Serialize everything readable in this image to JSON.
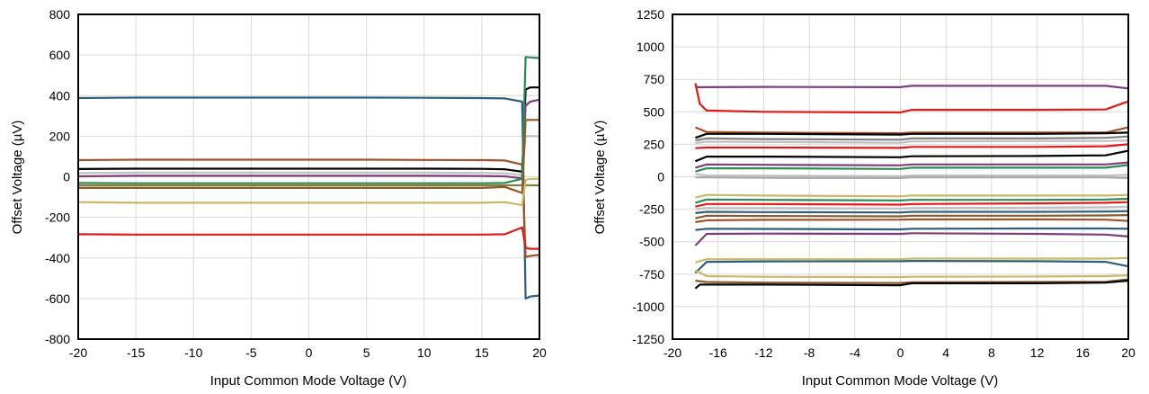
{
  "chart_data": [
    {
      "type": "line",
      "xlabel": "Input Common Mode Voltage (V)",
      "ylabel": "Offset Voltage (µV)",
      "xlim": [
        -20,
        20
      ],
      "ylim": [
        -800,
        800
      ],
      "xticks": [
        -20,
        -15,
        -10,
        -5,
        0,
        5,
        10,
        15,
        20
      ],
      "xtick_labels": [
        "-20",
        "-15",
        "-10",
        "-5",
        "0",
        "5",
        "10",
        "15",
        "20"
      ],
      "yticks": [
        -800,
        -600,
        -400,
        -200,
        0,
        200,
        400,
        600,
        800
      ],
      "ytick_labels": [
        "-800",
        "-600",
        "-400",
        "-200",
        "0",
        "200",
        "400",
        "600",
        "800"
      ],
      "grid": true,
      "series": [
        {
          "color": "#2f5f7a",
          "x": [
            -20,
            -15,
            -10,
            -5,
            0,
            5,
            10,
            15,
            17,
            18.5,
            18.8,
            19.2,
            20
          ],
          "y": [
            388,
            390,
            390,
            390,
            390,
            390,
            389,
            388,
            386,
            370,
            -600,
            -590,
            -585
          ]
        },
        {
          "color": "#a0522d",
          "x": [
            -20,
            -15,
            -10,
            -5,
            0,
            5,
            10,
            15,
            17,
            18.5,
            18.8,
            19.2,
            20
          ],
          "y": [
            82,
            84,
            84,
            84,
            84,
            84,
            83,
            82,
            80,
            60,
            -395,
            -390,
            -385
          ]
        },
        {
          "color": "#000000",
          "x": [
            -20,
            -15,
            -10,
            -5,
            0,
            5,
            10,
            15,
            17,
            18.5,
            18.8,
            19.2,
            20
          ],
          "y": [
            38,
            40,
            40,
            40,
            40,
            40,
            40,
            39,
            37,
            25,
            430,
            440,
            440
          ]
        },
        {
          "color": "#c0c0c0",
          "x": [
            -20,
            -15,
            -10,
            -5,
            0,
            5,
            10,
            15,
            17,
            18.5,
            18.8,
            19.2,
            20
          ],
          "y": [
            18,
            20,
            20,
            20,
            20,
            20,
            20,
            19,
            17,
            8,
            200,
            200,
            200
          ]
        },
        {
          "color": "#7b3f7b",
          "x": [
            -20,
            -15,
            -10,
            -5,
            0,
            5,
            10,
            15,
            17,
            18.5,
            18.8,
            19.2,
            20
          ],
          "y": [
            2,
            5,
            5,
            5,
            5,
            5,
            5,
            4,
            2,
            -8,
            350,
            370,
            380
          ]
        },
        {
          "color": "#2e8b57",
          "x": [
            -20,
            -15,
            -10,
            -5,
            0,
            5,
            10,
            15,
            17,
            18.5,
            18.8,
            19.2,
            20
          ],
          "y": [
            -30,
            -32,
            -32,
            -32,
            -32,
            -32,
            -32,
            -32,
            -30,
            -10,
            590,
            588,
            585
          ]
        },
        {
          "color": "#808040",
          "x": [
            -20,
            -15,
            -10,
            -5,
            0,
            5,
            10,
            15,
            17,
            18.5,
            18.8,
            19.2,
            20
          ],
          "y": [
            -42,
            -42,
            -42,
            -42,
            -42,
            -42,
            -42,
            -42,
            -42,
            -42,
            -42,
            -42,
            -42
          ]
        },
        {
          "color": "#8b5a2b",
          "x": [
            -20,
            -15,
            -10,
            -5,
            0,
            5,
            10,
            15,
            17,
            18.5,
            18.8,
            19.2,
            20
          ],
          "y": [
            -55,
            -55,
            -55,
            -55,
            -55,
            -55,
            -55,
            -55,
            -50,
            -80,
            280,
            280,
            280
          ]
        },
        {
          "color": "#c8b86a",
          "x": [
            -20,
            -15,
            -10,
            -5,
            0,
            5,
            10,
            15,
            17,
            18.5,
            18.8,
            19.2,
            20
          ],
          "y": [
            -125,
            -128,
            -128,
            -128,
            -128,
            -128,
            -128,
            -128,
            -125,
            -140,
            -15,
            -10,
            -10
          ]
        },
        {
          "color": "#e31a1c",
          "x": [
            -20,
            -15,
            -10,
            -5,
            0,
            5,
            10,
            15,
            17,
            18.5,
            18.8,
            19.2,
            20
          ],
          "y": [
            -283,
            -285,
            -285,
            -285,
            -285,
            -285,
            -285,
            -285,
            -283,
            -250,
            -350,
            -355,
            -355
          ]
        }
      ]
    },
    {
      "type": "line",
      "xlabel": "Input Common Mode Voltage (V)",
      "ylabel": "Offset Voltage (µV)",
      "xlim": [
        -20,
        20
      ],
      "ylim": [
        -1250,
        1250
      ],
      "xticks": [
        -20,
        -16,
        -12,
        -8,
        -4,
        0,
        4,
        8,
        12,
        16,
        20
      ],
      "xtick_labels": [
        "-20",
        "-16",
        "-12",
        "-8",
        "-4",
        "0",
        "4",
        "8",
        "12",
        "16",
        "20"
      ],
      "yticks": [
        -1250,
        -1000,
        -750,
        -500,
        -250,
        0,
        250,
        500,
        750,
        1000,
        1250
      ],
      "ytick_labels": [
        "-1250",
        "-1000",
        "-750",
        "-500",
        "-250",
        "0",
        "250",
        "500",
        "750",
        "1000",
        "1250"
      ],
      "grid": true,
      "series": [
        {
          "color": "#7b3f7b",
          "x": [
            -18,
            -17,
            -12,
            0,
            1,
            12,
            18,
            20
          ],
          "y": [
            690,
            690,
            692,
            690,
            700,
            700,
            700,
            680
          ]
        },
        {
          "color": "#e31a1c",
          "x": [
            -18,
            -17.6,
            -17,
            -12,
            0,
            1,
            12,
            18,
            20
          ],
          "y": [
            720,
            560,
            510,
            500,
            495,
            515,
            515,
            518,
            580
          ]
        },
        {
          "color": "#a0522d",
          "x": [
            -18,
            -17,
            -12,
            0,
            1,
            12,
            18,
            20
          ],
          "y": [
            380,
            345,
            340,
            335,
            340,
            340,
            340,
            380
          ]
        },
        {
          "color": "#000000",
          "x": [
            -18,
            -17,
            -12,
            0,
            1,
            12,
            18,
            20
          ],
          "y": [
            300,
            330,
            330,
            325,
            330,
            330,
            335,
            340
          ]
        },
        {
          "color": "#808080",
          "x": [
            -18,
            -17,
            -12,
            0,
            1,
            12,
            18,
            20
          ],
          "y": [
            280,
            295,
            290,
            285,
            295,
            295,
            300,
            310
          ]
        },
        {
          "color": "#c0c0c0",
          "x": [
            -18,
            -17,
            -12,
            0,
            1,
            12,
            18,
            20
          ],
          "y": [
            260,
            270,
            268,
            262,
            272,
            275,
            275,
            280
          ]
        },
        {
          "color": "#e31a1c",
          "x": [
            -18,
            -17,
            -12,
            0,
            1,
            12,
            18,
            20
          ],
          "y": [
            220,
            225,
            225,
            222,
            230,
            230,
            235,
            250
          ]
        },
        {
          "color": "#000000",
          "x": [
            -18,
            -17,
            -12,
            0,
            1,
            12,
            18,
            20
          ],
          "y": [
            120,
            155,
            155,
            150,
            158,
            160,
            165,
            200
          ]
        },
        {
          "color": "#7b3f7b",
          "x": [
            -18,
            -17,
            -12,
            0,
            1,
            12,
            18,
            20
          ],
          "y": [
            70,
            95,
            92,
            88,
            95,
            95,
            95,
            110
          ]
        },
        {
          "color": "#2e8b57",
          "x": [
            -18,
            -17,
            -12,
            0,
            1,
            12,
            18,
            20
          ],
          "y": [
            40,
            65,
            65,
            60,
            70,
            70,
            70,
            90
          ]
        },
        {
          "color": "#c0c0c0",
          "x": [
            -18,
            -17,
            -12,
            0,
            1,
            12,
            18,
            20
          ],
          "y": [
            20,
            10,
            8,
            5,
            10,
            10,
            10,
            15
          ]
        },
        {
          "color": "#a9a9a9",
          "x": [
            -18,
            -17,
            -12,
            0,
            1,
            12,
            18,
            20
          ],
          "y": [
            -5,
            -5,
            -8,
            -10,
            -5,
            -5,
            -5,
            -10
          ]
        },
        {
          "color": "#c8b86a",
          "x": [
            -18,
            -17,
            -12,
            0,
            1,
            12,
            18,
            20
          ],
          "y": [
            -160,
            -140,
            -145,
            -150,
            -145,
            -145,
            -145,
            -140
          ]
        },
        {
          "color": "#2e8b57",
          "x": [
            -18,
            -17,
            -12,
            0,
            1,
            12,
            18,
            20
          ],
          "y": [
            -200,
            -175,
            -178,
            -182,
            -178,
            -178,
            -175,
            -170
          ]
        },
        {
          "color": "#e31a1c",
          "x": [
            -18,
            -17,
            -12,
            0,
            1,
            12,
            18,
            20
          ],
          "y": [
            -230,
            -210,
            -210,
            -215,
            -210,
            -205,
            -200,
            -195
          ]
        },
        {
          "color": "#c0c0c0",
          "x": [
            -18,
            -17,
            -12,
            0,
            1,
            12,
            18,
            20
          ],
          "y": [
            -250,
            -240,
            -240,
            -245,
            -240,
            -238,
            -235,
            -230
          ]
        },
        {
          "color": "#2f5f7a",
          "x": [
            -18,
            -17,
            -12,
            0,
            1,
            12,
            18,
            20
          ],
          "y": [
            -280,
            -270,
            -272,
            -275,
            -270,
            -270,
            -268,
            -265
          ]
        },
        {
          "color": "#8b5a2b",
          "x": [
            -18,
            -17,
            -12,
            0,
            1,
            12,
            18,
            20
          ],
          "y": [
            -320,
            -300,
            -302,
            -305,
            -300,
            -300,
            -298,
            -295
          ]
        },
        {
          "color": "#a0522d",
          "x": [
            -18,
            -17,
            -12,
            0,
            1,
            12,
            18,
            20
          ],
          "y": [
            -350,
            -335,
            -332,
            -330,
            -328,
            -328,
            -330,
            -340
          ]
        },
        {
          "color": "#2f5f7a",
          "x": [
            -18,
            -17,
            -12,
            0,
            1,
            12,
            18,
            20
          ],
          "y": [
            -410,
            -400,
            -402,
            -405,
            -400,
            -398,
            -398,
            -400
          ]
        },
        {
          "color": "#7b3f7b",
          "x": [
            -18,
            -17,
            -12,
            0,
            1,
            12,
            18,
            20
          ],
          "y": [
            -530,
            -440,
            -438,
            -440,
            -435,
            -440,
            -445,
            -460
          ]
        },
        {
          "color": "#c8b86a",
          "x": [
            -18,
            -17,
            -12,
            0,
            1,
            12,
            18,
            20
          ],
          "y": [
            -660,
            -635,
            -635,
            -635,
            -630,
            -630,
            -630,
            -625
          ]
        },
        {
          "color": "#2f5f7a",
          "x": [
            -18,
            -17,
            -12,
            0,
            1,
            12,
            18,
            20
          ],
          "y": [
            -740,
            -655,
            -652,
            -650,
            -648,
            -650,
            -655,
            -690
          ]
        },
        {
          "color": "#c8b86a",
          "x": [
            -18,
            -17,
            -12,
            0,
            1,
            12,
            18,
            20
          ],
          "y": [
            -720,
            -765,
            -770,
            -772,
            -770,
            -768,
            -765,
            -760
          ]
        },
        {
          "color": "#8b5a2b",
          "x": [
            -18,
            -17,
            -12,
            0,
            1,
            12,
            18,
            20
          ],
          "y": [
            -800,
            -810,
            -815,
            -818,
            -812,
            -810,
            -808,
            -790
          ]
        },
        {
          "color": "#000000",
          "x": [
            -18,
            -17.6,
            -12,
            0,
            1,
            12,
            18,
            20
          ],
          "y": [
            -860,
            -830,
            -830,
            -835,
            -820,
            -820,
            -815,
            -800
          ]
        }
      ]
    }
  ]
}
